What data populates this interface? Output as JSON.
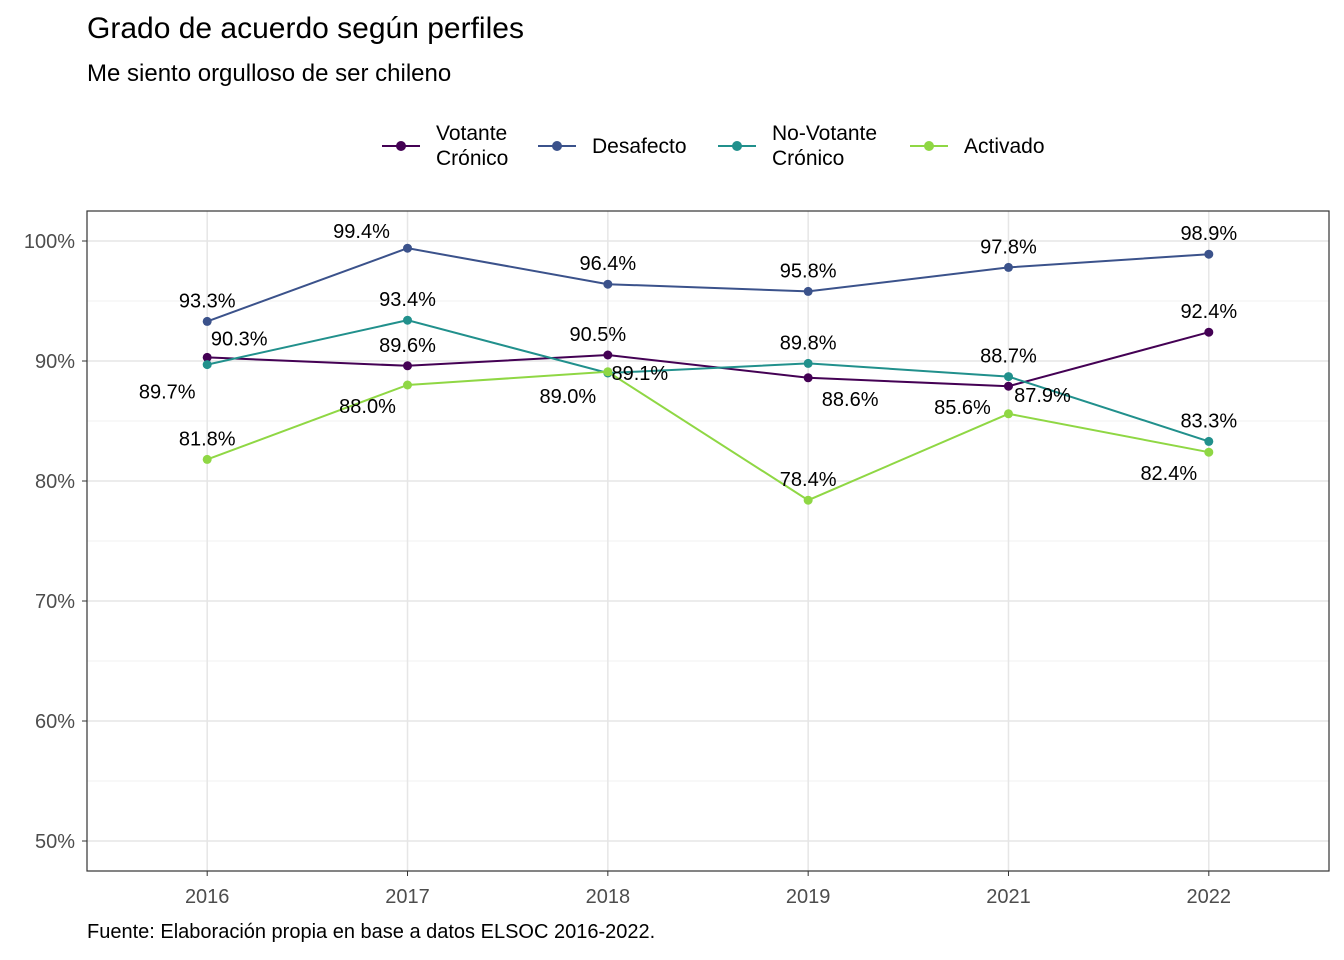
{
  "title": "Grado de acuerdo según perfiles",
  "subtitle": "Me siento orgulloso de ser chileno",
  "caption": "Fuente: Elaboración propia en base a datos ELSOC 2016-2022.",
  "legend": {
    "items": [
      {
        "label": "Votante\nCrónico",
        "color": "#440154"
      },
      {
        "label": "Desafecto",
        "color": "#3B528B"
      },
      {
        "label": "No-Votante\nCrónico",
        "color": "#21908C"
      },
      {
        "label": "Activado",
        "color": "#8FD744"
      }
    ]
  },
  "chart_data": {
    "type": "line",
    "title": "Grado de acuerdo según perfiles",
    "subtitle": "Me siento orgulloso de ser chileno",
    "x": [
      "2016",
      "2017",
      "2018",
      "2019",
      "2021",
      "2022"
    ],
    "ylim": [
      47.5,
      102.5
    ],
    "yticks": [
      "50%",
      "60%",
      "70%",
      "80%",
      "90%",
      "100%"
    ],
    "ytick_values": [
      50,
      60,
      70,
      80,
      90,
      100
    ],
    "xlabel": "",
    "ylabel": "",
    "grid": true,
    "legend_position": "top",
    "series": [
      {
        "name": "Votante Crónico",
        "color": "#440154",
        "values": [
          90.3,
          89.6,
          90.5,
          88.6,
          87.9,
          92.4
        ],
        "labels": [
          "90.3%",
          "89.6%",
          "90.5%",
          "88.6%",
          "87.9%",
          "92.4%"
        ]
      },
      {
        "name": "Desafecto",
        "color": "#3B528B",
        "values": [
          93.3,
          99.4,
          96.4,
          95.8,
          97.8,
          98.9
        ],
        "labels": [
          "93.3%",
          "99.4%",
          "96.4%",
          "95.8%",
          "97.8%",
          "98.9%"
        ]
      },
      {
        "name": "No-Votante Crónico",
        "color": "#21908C",
        "values": [
          89.7,
          93.4,
          89.0,
          89.8,
          88.7,
          83.3
        ],
        "labels": [
          "89.7%",
          "93.4%",
          "89.0%",
          "89.8%",
          "88.7%",
          "83.3%"
        ]
      },
      {
        "name": "Activado",
        "color": "#8FD744",
        "values": [
          81.8,
          88.0,
          89.1,
          78.4,
          85.6,
          82.4
        ],
        "labels": [
          "81.8%",
          "88.0%",
          "89.1%",
          "78.4%",
          "85.6%",
          "82.4%"
        ]
      }
    ]
  }
}
